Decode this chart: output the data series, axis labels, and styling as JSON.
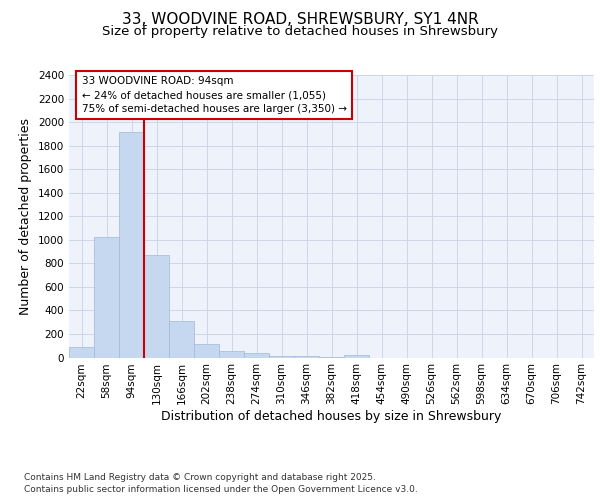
{
  "title_line1": "33, WOODVINE ROAD, SHREWSBURY, SY1 4NR",
  "title_line2": "Size of property relative to detached houses in Shrewsbury",
  "xlabel": "Distribution of detached houses by size in Shrewsbury",
  "ylabel": "Number of detached properties",
  "footer_line1": "Contains HM Land Registry data © Crown copyright and database right 2025.",
  "footer_line2": "Contains public sector information licensed under the Open Government Licence v3.0.",
  "annotation_line1": "33 WOODVINE ROAD: 94sqm",
  "annotation_line2": "← 24% of detached houses are smaller (1,055)",
  "annotation_line3": "75% of semi-detached houses are larger (3,350) →",
  "bar_color": "#c5d8f0",
  "bar_edge_color": "#a0b8d8",
  "red_line_index": 2,
  "categories": [
    "22sqm",
    "58sqm",
    "94sqm",
    "130sqm",
    "166sqm",
    "202sqm",
    "238sqm",
    "274sqm",
    "310sqm",
    "346sqm",
    "382sqm",
    "418sqm",
    "454sqm",
    "490sqm",
    "526sqm",
    "562sqm",
    "598sqm",
    "634sqm",
    "670sqm",
    "706sqm",
    "742sqm"
  ],
  "values": [
    90,
    1025,
    1920,
    875,
    310,
    115,
    55,
    40,
    15,
    10,
    5,
    25,
    0,
    0,
    0,
    0,
    0,
    0,
    0,
    0,
    0
  ],
  "ylim": [
    0,
    2400
  ],
  "yticks": [
    0,
    200,
    400,
    600,
    800,
    1000,
    1200,
    1400,
    1600,
    1800,
    2000,
    2200,
    2400
  ],
  "grid_color": "#cdd6e8",
  "background_color": "#eef2fa",
  "annotation_box_facecolor": "#ffffff",
  "annotation_box_edgecolor": "#cc0000",
  "red_line_color": "#cc0000",
  "title_fontsize": 11,
  "subtitle_fontsize": 9.5,
  "axis_label_fontsize": 9,
  "tick_fontsize": 7.5,
  "annotation_fontsize": 7.5,
  "footer_fontsize": 6.5
}
